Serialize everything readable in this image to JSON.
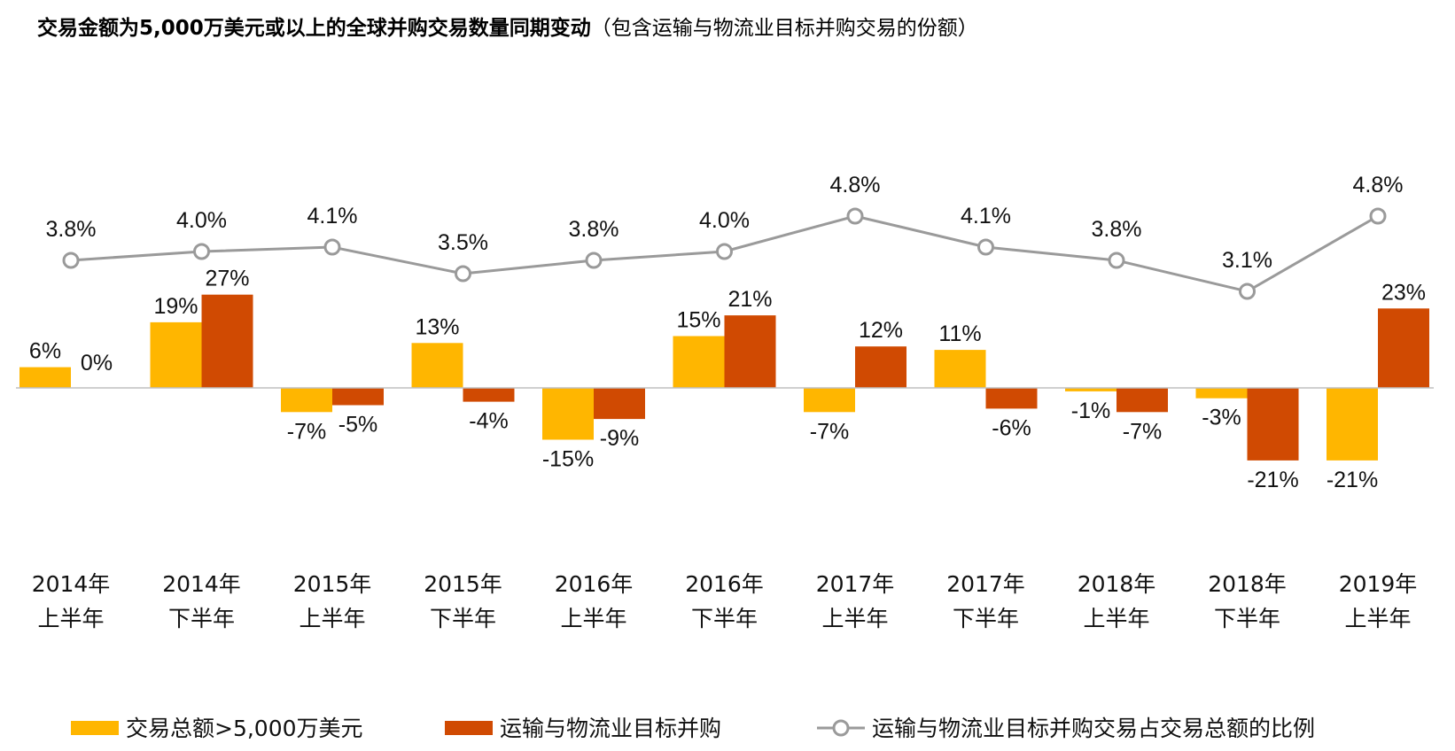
{
  "title": {
    "main": "交易金额为5,000万美元或以上的全球并购交易数量同期变动",
    "sub": "（包含运输与物流业目标并购交易的份额）"
  },
  "chart_data": {
    "type": "bar",
    "categories": [
      [
        "2014年",
        "上半年"
      ],
      [
        "2014年",
        "下半年"
      ],
      [
        "2015年",
        "上半年"
      ],
      [
        "2015年",
        "下半年"
      ],
      [
        "2016年",
        "上半年"
      ],
      [
        "2016年",
        "下半年"
      ],
      [
        "2017年",
        "上半年"
      ],
      [
        "2017年",
        "下半年"
      ],
      [
        "2018年",
        "上半年"
      ],
      [
        "2018年",
        "下半年"
      ],
      [
        "2019年",
        "上半年"
      ]
    ],
    "series": [
      {
        "name": "交易总额>5,000万美元",
        "type": "bar",
        "color": "#FFB600",
        "values": [
          6,
          19,
          -7,
          13,
          -15,
          15,
          -7,
          11,
          -1,
          -3,
          -21
        ],
        "labels": [
          "6%",
          "19%",
          "-7%",
          "13%",
          "-15%",
          "15%",
          "-7%",
          "11%",
          "-1%",
          "-3%",
          "-21%"
        ]
      },
      {
        "name": "运输与物流业目标并购",
        "type": "bar",
        "color": "#D04A02",
        "values": [
          0,
          27,
          -5,
          -4,
          -9,
          21,
          12,
          -6,
          -7,
          -21,
          23
        ],
        "labels": [
          "0%",
          "27%",
          "-5%",
          "-4%",
          "-9%",
          "21%",
          "12%",
          "-6%",
          "-7%",
          "-21%",
          "23%"
        ]
      },
      {
        "name": "运输与物流业目标并购交易占交易总额的比例",
        "type": "line",
        "color": "#9A9A9A",
        "values": [
          3.8,
          4.0,
          4.1,
          3.5,
          3.8,
          4.0,
          4.8,
          4.1,
          3.8,
          3.1,
          4.8
        ],
        "labels": [
          "3.8%",
          "4.0%",
          "4.1%",
          "3.5%",
          "3.8%",
          "4.0%",
          "4.8%",
          "4.1%",
          "3.8%",
          "3.1%",
          "4.8%"
        ]
      }
    ],
    "legend_position": "bottom",
    "grid": false
  }
}
